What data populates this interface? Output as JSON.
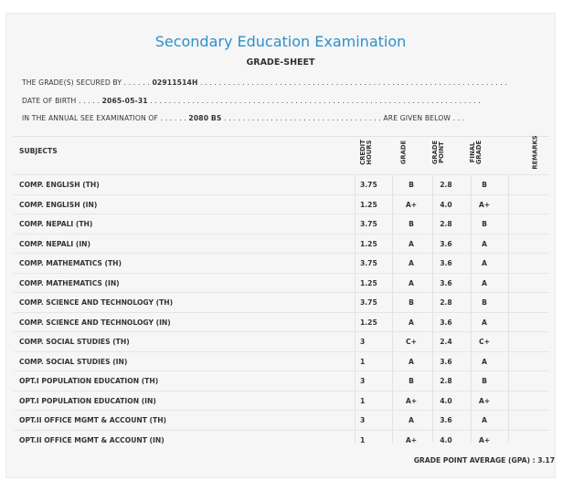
{
  "title": "Secondary Education Examination",
  "subtitle": "GRADE-SHEET",
  "info": {
    "line1": {
      "label": "THE GRADE(S) SECURED BY . . . . . .",
      "value": "02911514H",
      "dots": ". . . . . . . . . . . . . . . . . . . . . . . . . . . . . . . . . . . . . . . . . . . . . . . . . . . . . . . . . . . . . . . . . ."
    },
    "line2": {
      "label": "DATE OF BIRTH . . . . .",
      "value": "2065-05-31",
      "dots": ". . . . . . . . . . . . . . . . . . . . . . . . . . . . . . . . . . . . . . . . . . . . . . . . . . . . . . . . . . . . . . . . . . . . . . ."
    },
    "line3": {
      "label": "IN THE ANNUAL SEE EXAMINATION OF . . . . . .",
      "value": "2080 BS",
      "dots": ". . . . . . . . . . . . . . . . . . . . . . . . . . . . . . . . . .",
      "suffix": "ARE GIVEN BELOW . . ."
    }
  },
  "table": {
    "headers": {
      "subjects": "SUBJECTS",
      "credit_hours": "CREDIT\nHOURS",
      "grade": "GRADE",
      "grade_point": "GRADE\nPOINT",
      "final_grade": "FINAL\nGRADE",
      "remarks": "REMARKS"
    },
    "rows": [
      {
        "subject": "COMP. ENGLISH (TH)",
        "credit": "3.75",
        "grade": "B",
        "gp": "2.8",
        "final": "B"
      },
      {
        "subject": "COMP. ENGLISH (IN)",
        "credit": "1.25",
        "grade": "A+",
        "gp": "4.0",
        "final": "A+"
      },
      {
        "subject": "COMP. NEPALI (TH)",
        "credit": "3.75",
        "grade": "B",
        "gp": "2.8",
        "final": "B"
      },
      {
        "subject": "COMP. NEPALI (IN)",
        "credit": "1.25",
        "grade": "A",
        "gp": "3.6",
        "final": "A"
      },
      {
        "subject": "COMP. MATHEMATICS (TH)",
        "credit": "3.75",
        "grade": "A",
        "gp": "3.6",
        "final": "A"
      },
      {
        "subject": "COMP. MATHEMATICS (IN)",
        "credit": "1.25",
        "grade": "A",
        "gp": "3.6",
        "final": "A"
      },
      {
        "subject": "COMP. SCIENCE AND TECHNOLOGY (TH)",
        "credit": "3.75",
        "grade": "B",
        "gp": "2.8",
        "final": "B"
      },
      {
        "subject": "COMP. SCIENCE AND TECHNOLOGY (IN)",
        "credit": "1.25",
        "grade": "A",
        "gp": "3.6",
        "final": "A"
      },
      {
        "subject": "COMP. SOCIAL STUDIES (TH)",
        "credit": "3",
        "grade": "C+",
        "gp": "2.4",
        "final": "C+"
      },
      {
        "subject": "COMP. SOCIAL STUDIES (IN)",
        "credit": "1",
        "grade": "A",
        "gp": "3.6",
        "final": "A"
      },
      {
        "subject": "OPT.I POPULATION EDUCATION (TH)",
        "credit": "3",
        "grade": "B",
        "gp": "2.8",
        "final": "B"
      },
      {
        "subject": "OPT.I POPULATION EDUCATION (IN)",
        "credit": "1",
        "grade": "A+",
        "gp": "4.0",
        "final": "A+"
      },
      {
        "subject": "OPT.II OFFICE MGMT & ACCOUNT (TH)",
        "credit": "3",
        "grade": "A",
        "gp": "3.6",
        "final": "A"
      },
      {
        "subject": "OPT.II OFFICE MGMT & ACCOUNT (IN)",
        "credit": "1",
        "grade": "A+",
        "gp": "4.0",
        "final": "A+"
      }
    ]
  },
  "gpa_text": "GRADE POINT AVERAGE (GPA) : 3.17",
  "colors": {
    "title": "#2e8fcc",
    "background": "#f6f6f6",
    "text": "#333333"
  }
}
